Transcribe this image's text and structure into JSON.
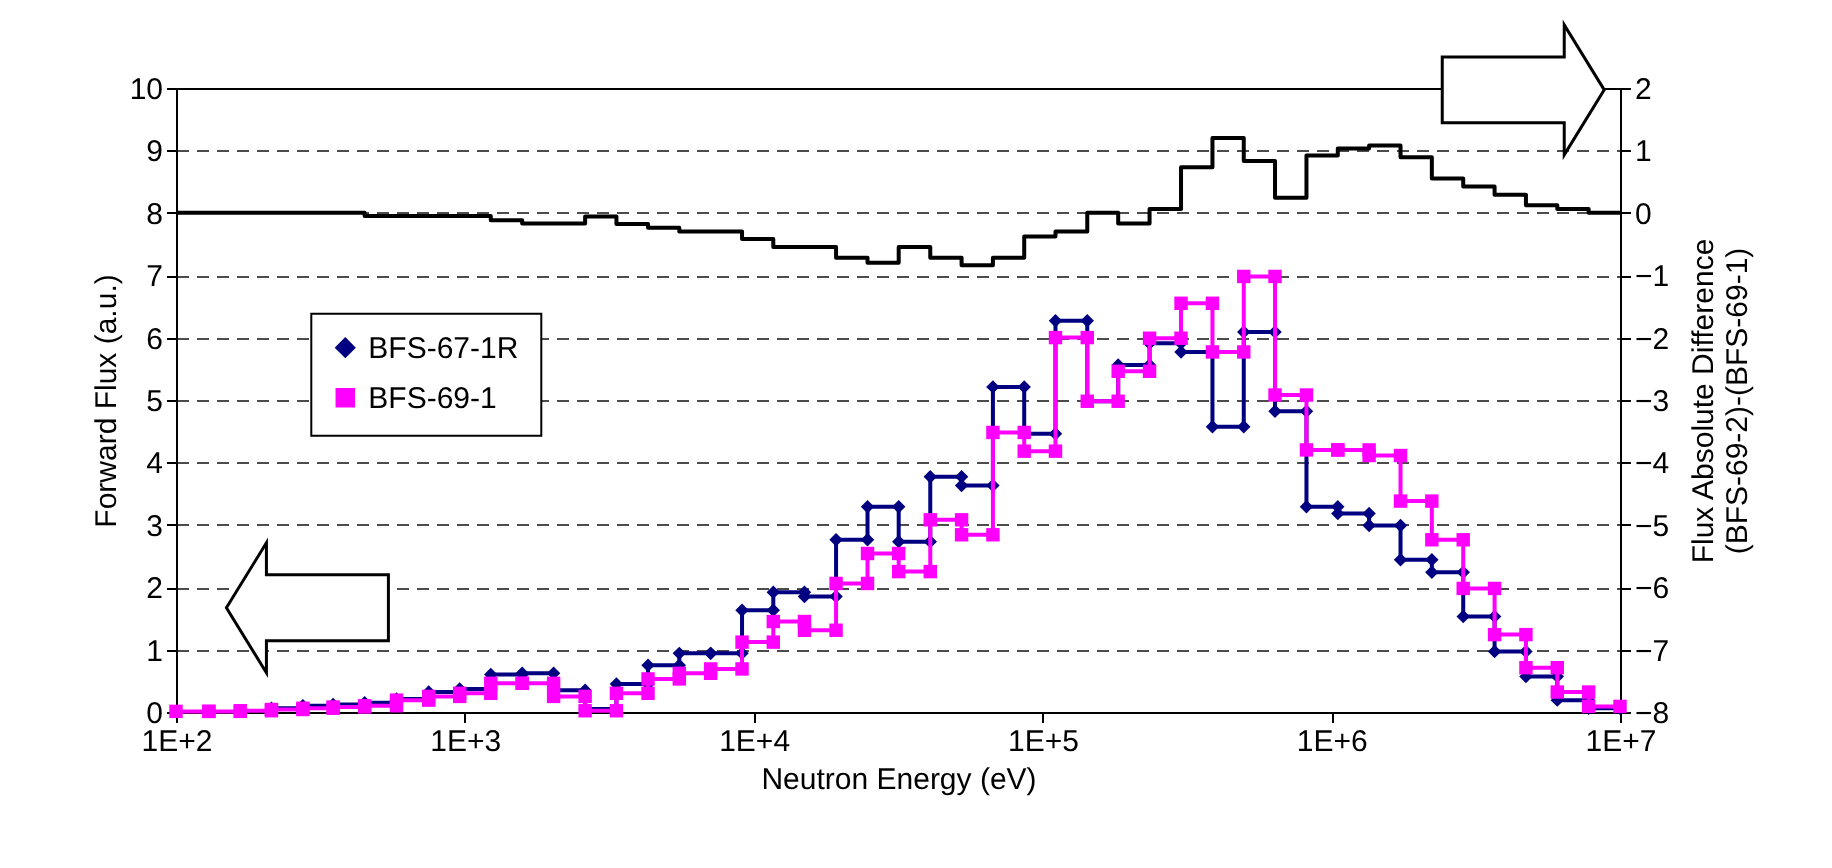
{
  "chart_data": {
    "type": "line",
    "xlabel": "Neutron Energy (eV)",
    "ylabel": "Forward Flux (a.u.)",
    "y2label": "Flux Absolute Difference\n(BFS-69-2)-(BFS-69-1)",
    "log": "x",
    "grid": "y",
    "legend": "left",
    "line_style": "solid",
    "xlim": [
      100,
      10000000
    ],
    "xticks": [
      {
        "value": 100,
        "label": "1E+2"
      },
      {
        "value": 1000,
        "label": "1E+3"
      },
      {
        "value": 10000,
        "label": "1E+4"
      },
      {
        "value": 100000,
        "label": "1E+5"
      },
      {
        "value": 1000000,
        "label": "1E+6"
      },
      {
        "value": 10000000,
        "label": "1E+7"
      }
    ],
    "ylim": [
      0,
      10
    ],
    "yticks": [
      0,
      1,
      2,
      3,
      4,
      5,
      6,
      7,
      8,
      9,
      10
    ],
    "y2lim": [
      -8,
      2
    ],
    "y2ticks": [
      -8,
      -7,
      -6,
      -5,
      -4,
      -3,
      -2,
      -1,
      0,
      1,
      2
    ],
    "x": [
      100,
      130,
      130,
      167,
      167,
      214,
      214,
      275,
      275,
      350,
      350,
      450,
      450,
      580,
      580,
      750,
      750,
      960,
      960,
      1230,
      1230,
      1580,
      1580,
      2030,
      2030,
      2610,
      2610,
      3350,
      3350,
      4310,
      4310,
      5530,
      5530,
      7100,
      7100,
      9120,
      9120,
      11700,
      11700,
      15000,
      15000,
      19300,
      19300,
      24800,
      24800,
      31800,
      31800,
      40900,
      40900,
      52500,
      52500,
      67400,
      67400,
      86500,
      86500,
      111000,
      111000,
      143000,
      143000,
      183000,
      183000,
      235000,
      235000,
      302000,
      302000,
      388000,
      388000,
      498000,
      498000,
      639000,
      639000,
      821000,
      821000,
      1054000,
      1054000,
      1353000,
      1353000,
      1738000,
      1738000,
      2231000,
      2231000,
      2865000,
      2865000,
      3679000,
      3679000,
      4724000,
      4724000,
      6065000,
      6065000,
      7788000,
      7788000,
      10000000
    ],
    "series": [
      {
        "name": "BFS-67-1R",
        "color": "#000080",
        "marker": "diamond",
        "values": [
          null,
          null,
          null,
          null,
          null,
          0.03,
          0.06,
          0.06,
          0.1,
          0.1,
          0.12,
          0.12,
          0.15,
          0.15,
          0.21,
          0.21,
          0.32,
          0.32,
          0.37,
          0.37,
          0.6,
          0.6,
          0.62,
          0.62,
          0.35,
          0.35,
          0.05,
          0.05,
          0.45,
          0.45,
          0.75,
          0.75,
          0.94,
          0.94,
          0.94,
          0.94,
          1.63,
          1.63,
          1.92,
          1.92,
          1.85,
          1.85,
          2.76,
          2.76,
          3.29,
          3.29,
          2.73,
          2.73,
          3.77,
          3.77,
          3.63,
          3.63,
          5.21,
          5.21,
          4.46,
          4.46,
          6.27,
          6.27,
          4.98,
          4.98,
          5.56,
          5.56,
          5.91,
          5.91,
          5.77,
          5.77,
          4.57,
          4.57,
          6.09,
          6.09,
          4.82,
          4.82,
          3.29,
          3.29,
          3.18,
          3.18,
          2.99,
          2.99,
          2.44,
          2.44,
          2.24,
          2.24,
          1.53,
          1.53,
          0.97,
          0.97,
          0.57,
          0.57,
          0.19,
          0.19,
          0.06,
          0.06
        ]
      },
      {
        "name": "BFS-69-1",
        "color": "#ff00ff",
        "marker": "square",
        "values": [
          0.01,
          0.01,
          0.01,
          0.01,
          0.02,
          0.02,
          0.04,
          0.04,
          0.06,
          0.06,
          0.08,
          0.08,
          0.1,
          0.1,
          0.19,
          0.19,
          0.25,
          0.25,
          0.3,
          0.3,
          0.46,
          0.46,
          0.46,
          0.46,
          0.25,
          0.25,
          0.02,
          0.02,
          0.3,
          0.3,
          0.53,
          0.53,
          0.62,
          0.62,
          0.69,
          0.69,
          1.12,
          1.12,
          1.45,
          1.45,
          1.31,
          1.31,
          2.06,
          2.06,
          2.54,
          2.54,
          2.25,
          2.25,
          3.08,
          3.08,
          2.84,
          2.84,
          4.48,
          4.48,
          4.18,
          4.18,
          6.0,
          6.0,
          4.98,
          4.98,
          5.46,
          5.46,
          5.99,
          5.99,
          6.55,
          6.55,
          5.77,
          5.77,
          6.98,
          6.98,
          5.08,
          5.08,
          4.2,
          4.2,
          4.2,
          4.2,
          4.11,
          4.11,
          3.38,
          3.38,
          2.76,
          2.76,
          1.98,
          1.98,
          1.24,
          1.24,
          0.71,
          0.71,
          0.32,
          0.32,
          0.09,
          0.09
        ]
      },
      {
        "color": "#000000",
        "marker": "none",
        "axis": "y2",
        "values": [
          0,
          0,
          0,
          0,
          0,
          0,
          0,
          0,
          0,
          0,
          0,
          0,
          -0.05,
          -0.05,
          -0.05,
          -0.05,
          -0.05,
          -0.05,
          -0.05,
          -0.05,
          -0.12,
          -0.12,
          -0.17,
          -0.17,
          -0.17,
          -0.17,
          -0.06,
          -0.06,
          -0.18,
          -0.18,
          -0.24,
          -0.24,
          -0.3,
          -0.3,
          -0.3,
          -0.3,
          -0.42,
          -0.42,
          -0.55,
          -0.55,
          -0.55,
          -0.55,
          -0.72,
          -0.72,
          -0.8,
          -0.8,
          -0.55,
          -0.55,
          -0.72,
          -0.72,
          -0.84,
          -0.84,
          -0.72,
          -0.72,
          -0.38,
          -0.38,
          -0.3,
          -0.3,
          0,
          0,
          -0.17,
          -0.17,
          0.06,
          0.06,
          0.73,
          0.73,
          1.2,
          1.2,
          0.83,
          0.83,
          0.24,
          0.24,
          0.92,
          0.92,
          1.03,
          1.03,
          1.08,
          1.08,
          0.89,
          0.89,
          0.55,
          0.55,
          0.42,
          0.42,
          0.29,
          0.29,
          0.12,
          0.12,
          0.06,
          0.06,
          0,
          0
        ]
      }
    ]
  }
}
